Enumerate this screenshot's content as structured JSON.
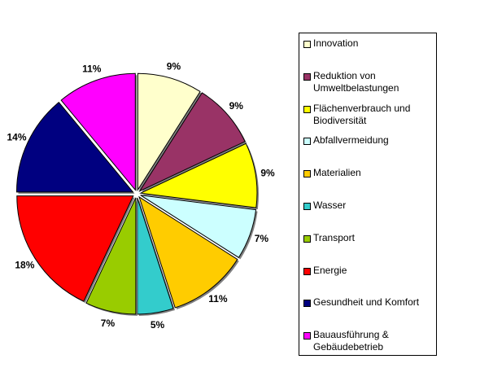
{
  "chart_data": {
    "type": "pie",
    "series": [
      {
        "label": "Innovation",
        "value": 9,
        "label_text": "9%",
        "color": "#FFFFCC"
      },
      {
        "label": "Reduktion von Umweltbelastungen",
        "value": 9,
        "label_text": "9%",
        "color": "#993366"
      },
      {
        "label": "Flächenverbrauch und Biodiversität",
        "value": 9,
        "label_text": "9%",
        "color": "#FFFF00"
      },
      {
        "label": "Abfallvermeidung",
        "value": 7,
        "label_text": "7%",
        "color": "#CCFFFF"
      },
      {
        "label": "Materialien",
        "value": 11,
        "label_text": "11%",
        "color": "#FFCC00"
      },
      {
        "label": "Wasser",
        "value": 5,
        "label_text": "5%",
        "color": "#33CCCC"
      },
      {
        "label": "Transport",
        "value": 7,
        "label_text": "7%",
        "color": "#99CC00"
      },
      {
        "label": "Energie",
        "value": 18,
        "label_text": "18%",
        "color": "#FF0000"
      },
      {
        "label": "Gesundheit und Komfort",
        "value": 14,
        "label_text": "14%",
        "color": "#000080"
      },
      {
        "label": "Bauausführung & Gebäudebetrieb",
        "value": 11,
        "label_text": "11%",
        "color": "#FF00FF"
      }
    ],
    "legend": {
      "placement": "right",
      "items": [
        [
          "Innovation"
        ],
        [
          "Reduktion von",
          "Umweltbelastungen"
        ],
        [
          "Flächenverbrauch und",
          "Biodiversität"
        ],
        [
          "Abfallvermeidung"
        ],
        [
          "Materialien"
        ],
        [
          "Wasser"
        ],
        [
          "Transport"
        ],
        [
          "Energie"
        ],
        [
          "Gesundheit und Komfort"
        ],
        [
          "Bauausführung &",
          "Gebäudebetrieb"
        ]
      ]
    }
  }
}
